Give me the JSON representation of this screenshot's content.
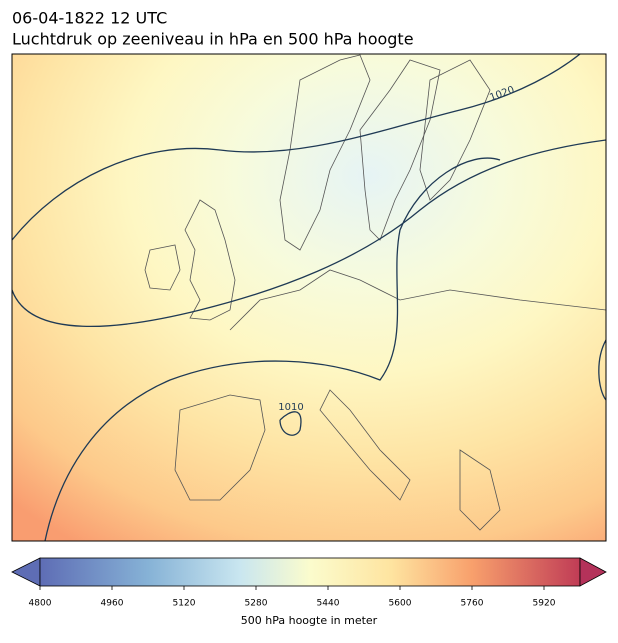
{
  "title": "06-04-1822 12 UTC",
  "subtitle": "Luchtdruk op zeeniveau in hPa en 500 hPa hoogte",
  "contour_labels": [
    1020,
    1010
  ],
  "colorbar": {
    "label": "500 hPa hoogte in meter",
    "lim": [
      4800,
      6000
    ],
    "ticks": [
      4800,
      4960,
      5120,
      5280,
      5440,
      5600,
      5760,
      5920
    ]
  }
}
